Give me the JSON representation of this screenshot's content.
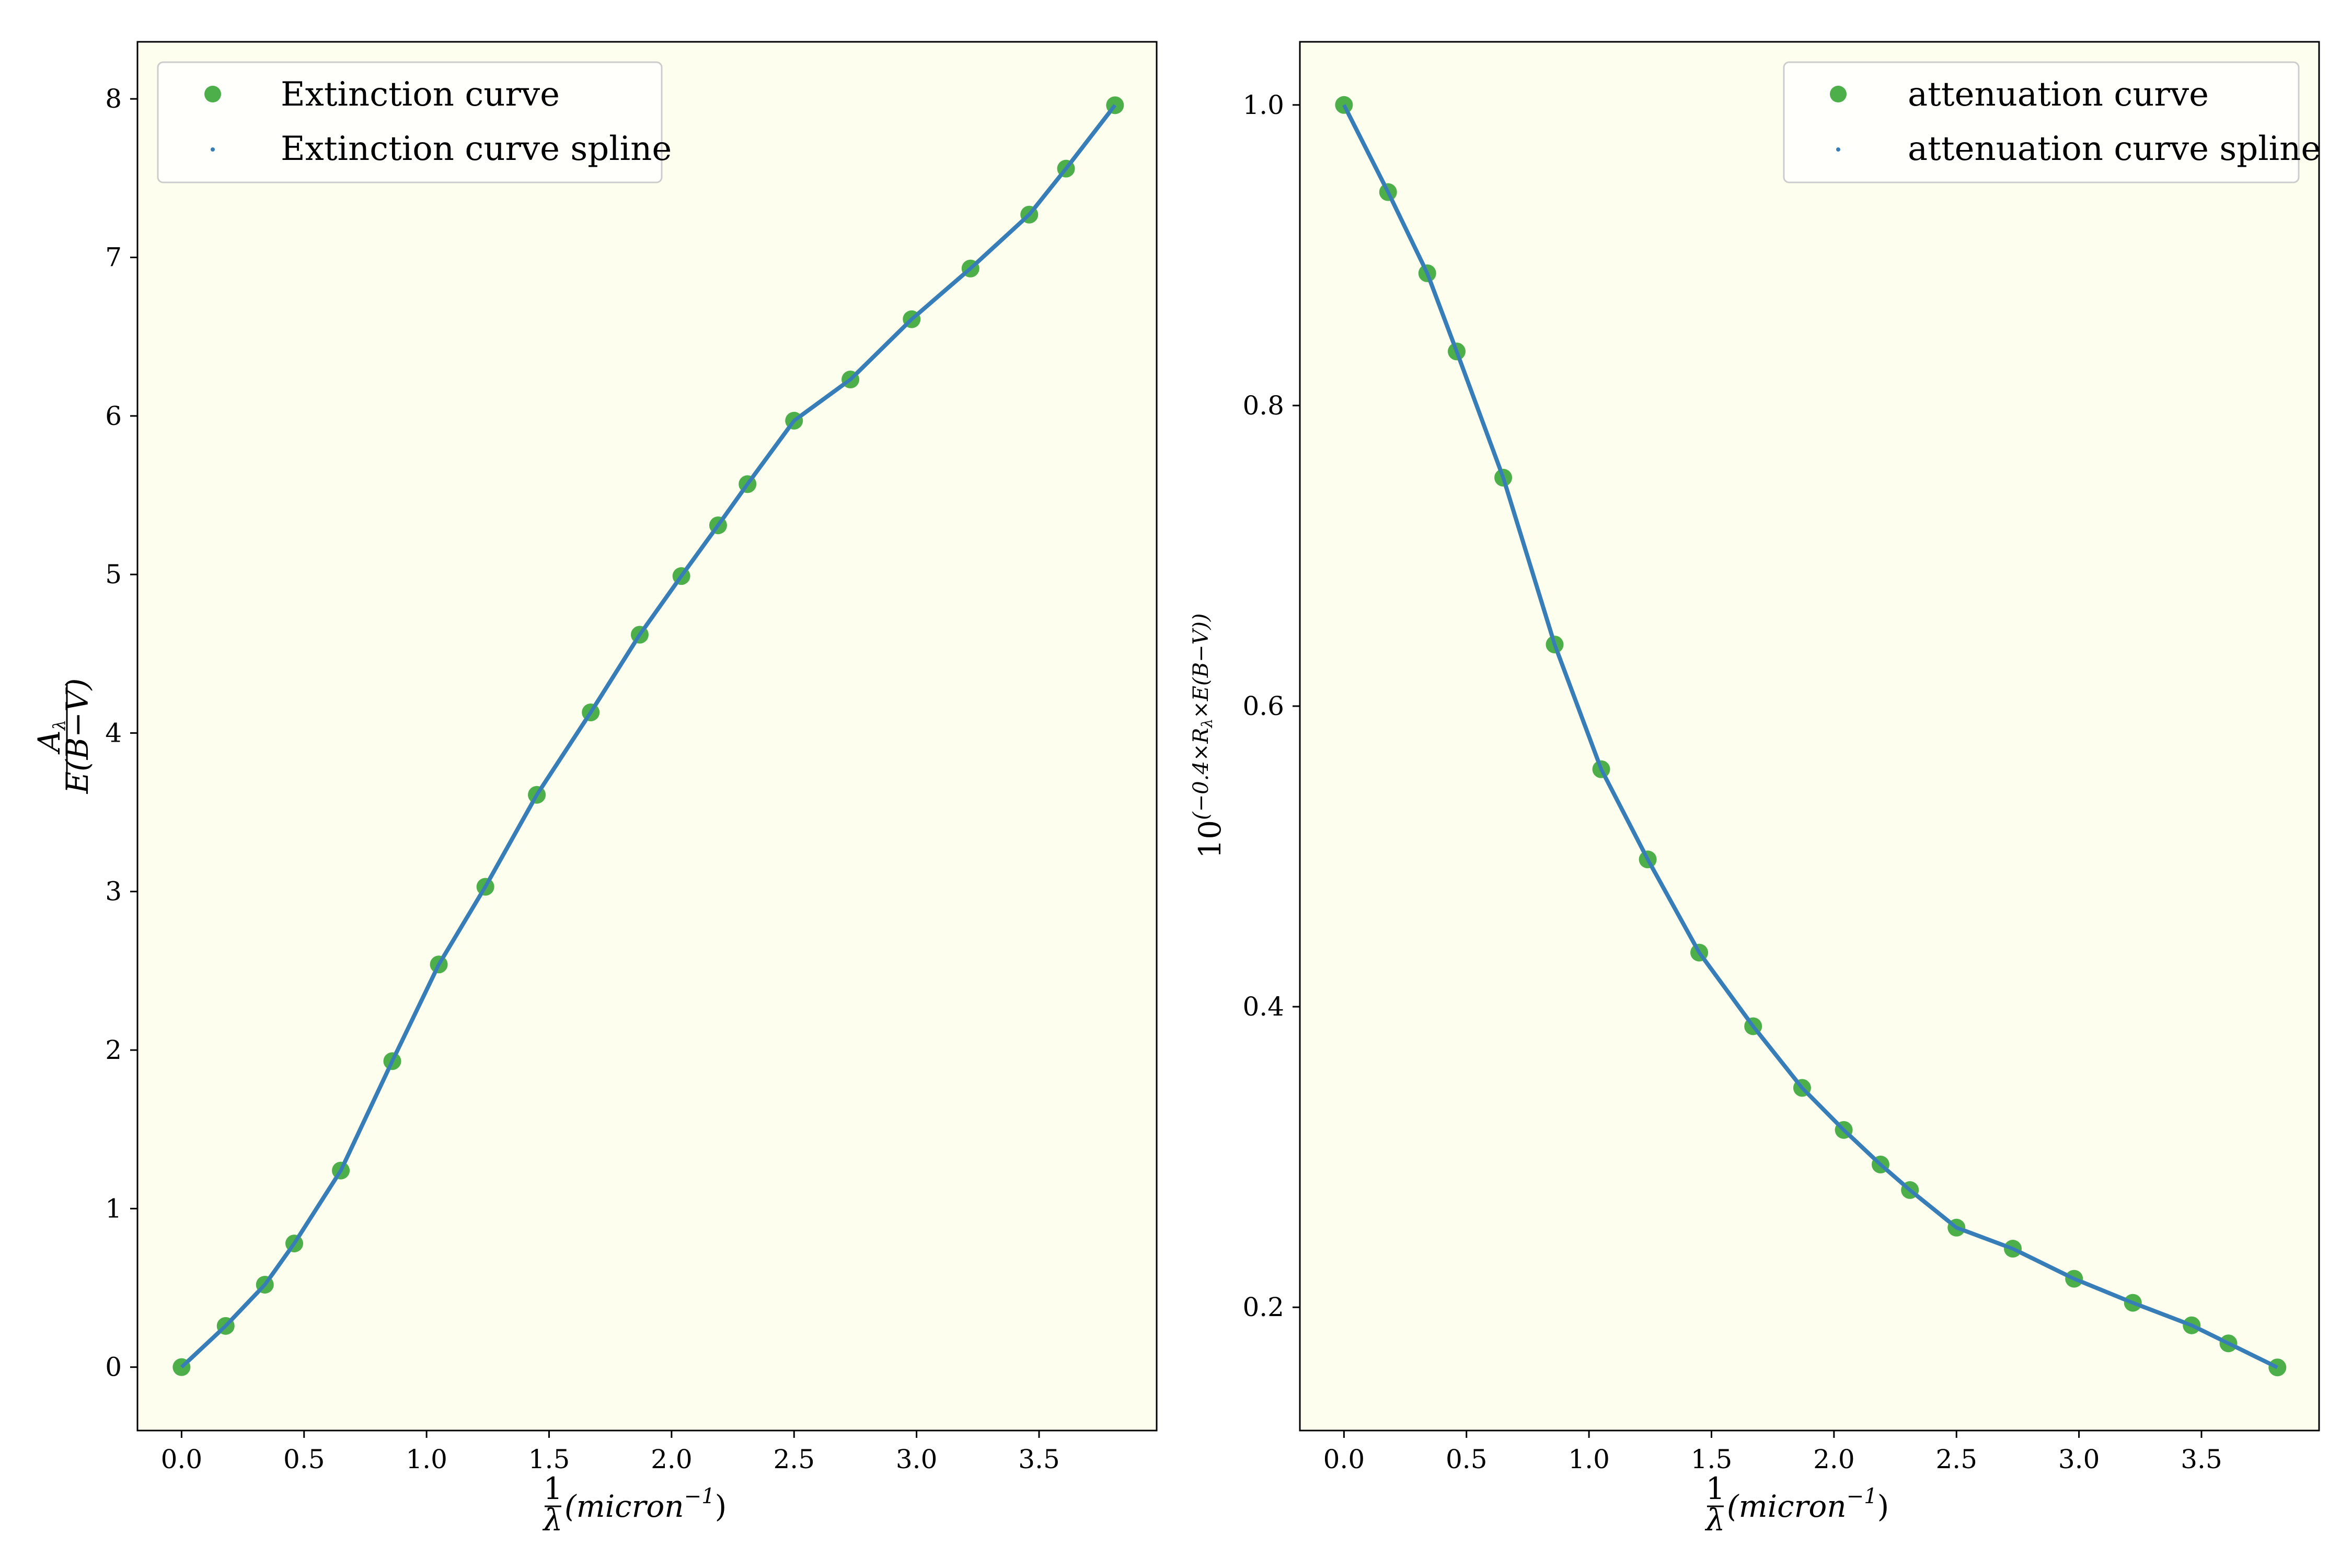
{
  "chart_data": [
    {
      "type": "line",
      "title": "",
      "background": "#fdfeee",
      "xlabel": {
        "frac_num": "1",
        "frac_den": "λ",
        "text": "(micron",
        "sup": "−1",
        "close": ")"
      },
      "ylabel": {
        "num": "A",
        "num_sub": "λ",
        "den": "E(B−V)"
      },
      "xlim": [
        -0.18,
        3.98
      ],
      "ylim": [
        -0.4,
        8.36
      ],
      "xticks": [
        0,
        0.5,
        1.0,
        1.5,
        2.0,
        2.5,
        3.0,
        3.5
      ],
      "xtick_labels": [
        "0.0",
        "0.5",
        "1.0",
        "1.5",
        "2.0",
        "2.5",
        "3.0",
        "3.5"
      ],
      "yticks": [
        0,
        1,
        2,
        3,
        4,
        5,
        6,
        7,
        8
      ],
      "ytick_labels": [
        "0",
        "1",
        "2",
        "3",
        "4",
        "5",
        "6",
        "7",
        "8"
      ],
      "grid": false,
      "legend_position": "upper-left",
      "x": [
        0.0,
        0.18,
        0.34,
        0.46,
        0.65,
        0.86,
        1.05,
        1.24,
        1.45,
        1.67,
        1.87,
        2.04,
        2.19,
        2.31,
        2.5,
        2.73,
        2.98,
        3.22,
        3.46,
        3.61,
        3.81
      ],
      "series": [
        {
          "name": "Extinction curve",
          "style": "markers",
          "color": "#4daf4a",
          "values": [
            0.0,
            0.26,
            0.52,
            0.78,
            1.24,
            1.93,
            2.54,
            3.03,
            3.61,
            4.13,
            4.62,
            4.99,
            5.31,
            5.57,
            5.97,
            6.23,
            6.61,
            6.93,
            7.27,
            7.56,
            7.96
          ]
        },
        {
          "name": "Extinction curve spline",
          "style": "line",
          "color": "#377eb8",
          "values": [
            0.0,
            0.26,
            0.52,
            0.78,
            1.24,
            1.93,
            2.54,
            3.03,
            3.61,
            4.13,
            4.62,
            4.99,
            5.31,
            5.57,
            5.97,
            6.23,
            6.61,
            6.93,
            7.27,
            7.56,
            7.96
          ]
        }
      ]
    },
    {
      "type": "line",
      "title": "",
      "background": "#fdfeee",
      "xlabel": {
        "frac_num": "1",
        "frac_den": "λ",
        "text": "(micron",
        "sup": "−1",
        "close": ")"
      },
      "ylabel": {
        "base": "10",
        "exponent": "(−0.4×R",
        "exponent_sub": "λ",
        "exponent_rest": "×E(B−V))"
      },
      "xlim": [
        -0.18,
        3.98
      ],
      "ylim": [
        0.118,
        1.042
      ],
      "xticks": [
        0,
        0.5,
        1.0,
        1.5,
        2.0,
        2.5,
        3.0,
        3.5
      ],
      "xtick_labels": [
        "0.0",
        "0.5",
        "1.0",
        "1.5",
        "2.0",
        "2.5",
        "3.0",
        "3.5"
      ],
      "yticks": [
        0.2,
        0.4,
        0.6,
        0.8,
        1.0
      ],
      "ytick_labels": [
        "0.2",
        "0.4",
        "0.6",
        "0.8",
        "1.0"
      ],
      "grid": false,
      "legend_position": "upper-right",
      "x": [
        0.0,
        0.18,
        0.34,
        0.46,
        0.65,
        0.86,
        1.05,
        1.24,
        1.45,
        1.67,
        1.87,
        2.04,
        2.19,
        2.31,
        2.5,
        2.73,
        2.98,
        3.22,
        3.46,
        3.61,
        3.81
      ],
      "series": [
        {
          "name": "attenuation curve",
          "style": "markers",
          "color": "#4daf4a",
          "values": [
            1.0,
            0.942,
            0.888,
            0.836,
            0.752,
            0.641,
            0.558,
            0.498,
            0.436,
            0.387,
            0.346,
            0.318,
            0.295,
            0.278,
            0.253,
            0.239,
            0.219,
            0.203,
            0.188,
            0.176,
            0.16
          ]
        },
        {
          "name": "attenuation curve spline",
          "style": "line",
          "color": "#377eb8",
          "values": [
            1.0,
            0.942,
            0.888,
            0.836,
            0.752,
            0.641,
            0.558,
            0.498,
            0.436,
            0.387,
            0.346,
            0.318,
            0.295,
            0.278,
            0.253,
            0.239,
            0.219,
            0.203,
            0.188,
            0.176,
            0.16
          ]
        }
      ]
    }
  ]
}
